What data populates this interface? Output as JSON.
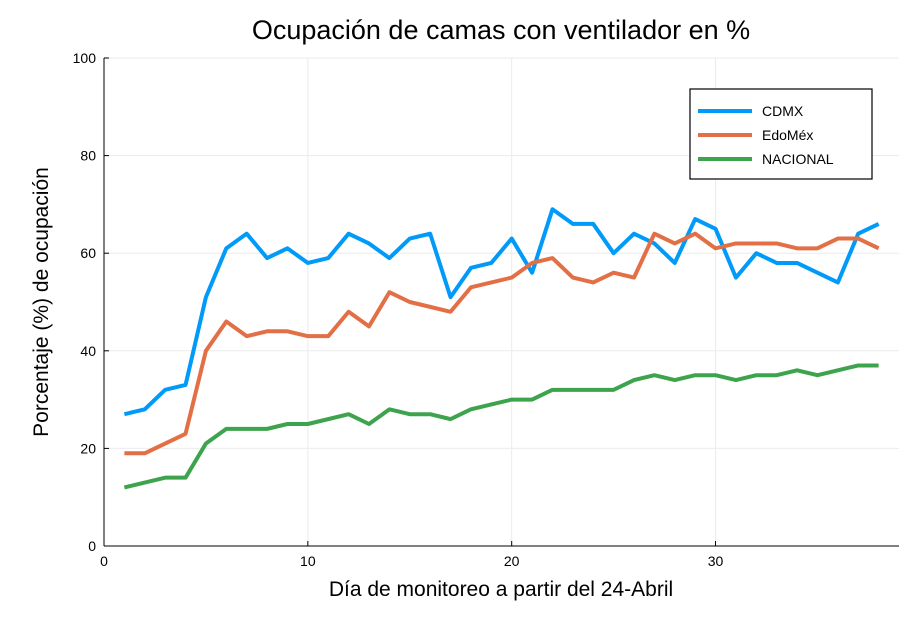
{
  "chart_data": {
    "type": "line",
    "title": "Ocupación de camas con ventilador en %",
    "xlabel": "Día de monitoreo a partir del 24-Abril",
    "ylabel": "Porcentaje (%) de ocupación",
    "xlim": [
      0,
      39
    ],
    "ylim": [
      0,
      100
    ],
    "xticks": [
      0,
      10,
      20,
      30
    ],
    "yticks": [
      0,
      20,
      40,
      60,
      80,
      100
    ],
    "grid": true,
    "legend_position": "top-right",
    "x": [
      1,
      2,
      3,
      4,
      5,
      6,
      7,
      8,
      9,
      10,
      11,
      12,
      13,
      14,
      15,
      16,
      17,
      18,
      19,
      20,
      21,
      22,
      23,
      24,
      25,
      26,
      27,
      28,
      29,
      30,
      31,
      32,
      33,
      34,
      35,
      36,
      37,
      38
    ],
    "series": [
      {
        "name": "CDMX",
        "color": "#009af9",
        "values": [
          27,
          28,
          32,
          33,
          51,
          61,
          64,
          59,
          61,
          58,
          59,
          64,
          62,
          59,
          63,
          64,
          51,
          57,
          58,
          63,
          56,
          69,
          66,
          66,
          60,
          64,
          62,
          58,
          67,
          65,
          55,
          60,
          58,
          58,
          56,
          54,
          64,
          66
        ]
      },
      {
        "name": "EdoMéx",
        "color": "#e26f46",
        "values": [
          19,
          19,
          21,
          23,
          40,
          46,
          43,
          44,
          44,
          43,
          43,
          48,
          45,
          52,
          50,
          49,
          48,
          53,
          54,
          55,
          58,
          59,
          55,
          54,
          56,
          55,
          64,
          62,
          64,
          61,
          62,
          62,
          62,
          61,
          61,
          63,
          63,
          61
        ]
      },
      {
        "name": "NACIONAL",
        "color": "#3da44d",
        "values": [
          12,
          13,
          14,
          14,
          21,
          24,
          24,
          24,
          25,
          25,
          26,
          27,
          25,
          28,
          27,
          27,
          26,
          28,
          29,
          30,
          30,
          32,
          32,
          32,
          32,
          34,
          35,
          34,
          35,
          35,
          34,
          35,
          35,
          36,
          35,
          36,
          37,
          37
        ]
      }
    ]
  }
}
